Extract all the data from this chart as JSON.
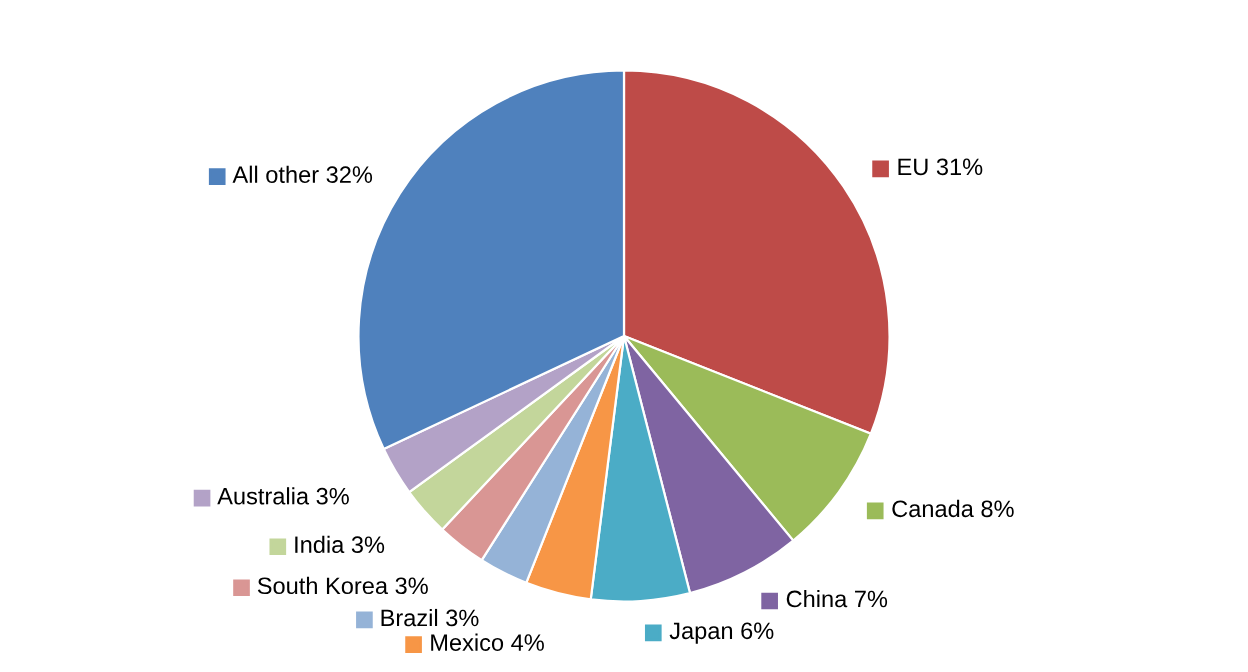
{
  "chart_data": {
    "type": "pie",
    "categories": [
      "EU",
      "Canada",
      "China",
      "Japan",
      "Mexico",
      "Brazil",
      "South Korea",
      "India",
      "Australia",
      "All other"
    ],
    "values": [
      31,
      8,
      7,
      6,
      4,
      3,
      3,
      3,
      3,
      32
    ],
    "value_labels": [
      "31%",
      "8%",
      "7%",
      "6%",
      "4%",
      "3%",
      "3%",
      "3%",
      "3%",
      "32%"
    ],
    "legend": "left",
    "colors": [
      "#be4b48",
      "#9bbb59",
      "#7f64a2",
      "#4bacc6",
      "#f79646",
      "#95b3d7",
      "#d99694",
      "#c3d69b",
      "#b3a2c7",
      "#4f81bd"
    ]
  }
}
